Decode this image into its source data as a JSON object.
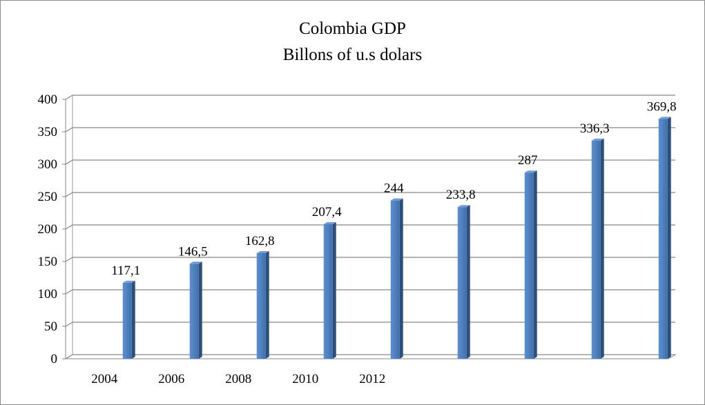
{
  "chart_data": {
    "type": "bar",
    "title": "Colombia GDP",
    "subtitle": "Billons of u.s dolars",
    "xlabel": "",
    "ylabel": "",
    "ylim": [
      0,
      400
    ],
    "yticks": [
      0,
      50,
      100,
      150,
      200,
      250,
      300,
      350,
      400
    ],
    "grid": true,
    "legend": "none",
    "x_tick_labels": [
      "2004",
      "2006",
      "2008",
      "2010",
      "2012",
      "",
      "",
      "",
      ""
    ],
    "series": [
      {
        "values": [
          117.1,
          146.5,
          162.8,
          207.4,
          244,
          233.8,
          287,
          336.3,
          369.8
        ],
        "labels": [
          "117,1",
          "146,5",
          "162,8",
          "207,4",
          "244",
          "233,8",
          "287",
          "336,3",
          "369,8"
        ]
      }
    ],
    "bar_color": "#4f81bd"
  }
}
